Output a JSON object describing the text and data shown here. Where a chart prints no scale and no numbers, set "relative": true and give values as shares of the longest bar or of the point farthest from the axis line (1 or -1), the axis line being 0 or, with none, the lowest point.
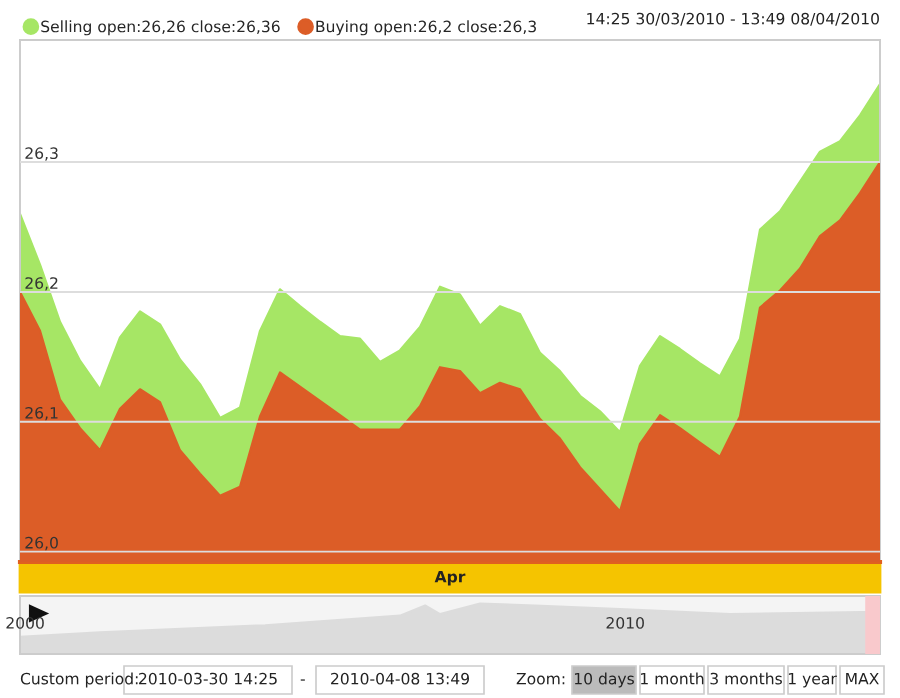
{
  "chart_data": [
    {
      "type": "area",
      "subtitle": "14:25 30/03/2010 - 13:49 08/04/2010",
      "legend": "top left",
      "grid": "y",
      "categories": [
        null,
        null,
        null,
        null,
        null,
        null,
        null,
        null,
        null,
        null,
        null,
        null,
        null,
        null,
        null,
        null,
        null,
        null,
        null,
        null,
        null,
        null,
        null,
        null,
        null,
        null,
        null,
        null,
        null,
        null,
        null,
        null,
        null,
        null,
        null,
        null,
        null,
        null,
        null,
        null,
        null,
        null,
        null,
        null
      ],
      "ylim": [
        25.992,
        26.394
      ],
      "yticks": [
        {
          "value": 26.0,
          "label": "26,0"
        },
        {
          "value": 26.1,
          "label": "26,1"
        },
        {
          "value": 26.2,
          "label": "26,2"
        },
        {
          "value": 26.3,
          "label": "26,3"
        }
      ],
      "annotations": [
        "Apr"
      ],
      "series": [
        {
          "name": "Selling open:26,26 close:26,36",
          "color": "#a6e665",
          "values": [
            26.26,
            26.221,
            26.177,
            26.147,
            26.125,
            26.165,
            26.185,
            26.175,
            26.148,
            26.129,
            26.103,
            26.111,
            26.17,
            26.202,
            26.189,
            26.177,
            26.166,
            26.164,
            26.146,
            26.155,
            26.173,
            26.204,
            26.198,
            26.174,
            26.189,
            26.183,
            26.153,
            26.139,
            26.12,
            26.108,
            26.092,
            26.143,
            26.166,
            26.156,
            26.145,
            26.135,
            26.164,
            26.248,
            26.262,
            26.285,
            26.308,
            26.316,
            26.336,
            26.36
          ]
        },
        {
          "name": "Buying open:26,2 close:26,3",
          "color": "#dc5d27",
          "values": [
            26.2,
            26.17,
            26.117,
            26.095,
            26.078,
            26.11,
            26.125,
            26.115,
            26.078,
            26.06,
            26.043,
            26.05,
            26.104,
            26.138,
            26.127,
            26.116,
            26.105,
            26.094,
            26.094,
            26.094,
            26.112,
            26.142,
            26.139,
            26.122,
            26.13,
            26.125,
            26.102,
            26.087,
            26.065,
            26.048,
            26.031,
            26.083,
            26.105,
            26.095,
            26.084,
            26.073,
            26.104,
            26.188,
            26.201,
            26.218,
            26.243,
            26.255,
            26.276,
            26.3
          ]
        }
      ]
    },
    {
      "type": "area",
      "relative": true,
      "xlim": [
        "1999-12",
        "2014-04"
      ],
      "xticks": [
        {
          "value": "2000",
          "label": "2000"
        },
        {
          "value": "2010",
          "label": "2010"
        }
      ],
      "bands": [
        {
          "axis": "x",
          "from": "2014-01",
          "to": "2014-04",
          "color": "#f9c9cc"
        }
      ],
      "series": [
        {
          "color": "#dcdcdc",
          "x": [
            "1999-12",
            "2001-04",
            "2004-01",
            "2006-04",
            "2006-09",
            "2006-12",
            "2007-08",
            "2008-07",
            "2009-12",
            "2011-10",
            "2013-12",
            "2014-04"
          ],
          "values": [
            0.34,
            0.43,
            0.57,
            0.76,
            0.96,
            0.79,
            1,
            0.96,
            0.89,
            0.79,
            0.83,
            0.83
          ]
        }
      ],
      "annotations": [
        "Custom period:",
        "2010-03-30 14:25",
        "-",
        "2010-04-08 13:49",
        "Zoom:",
        "10 days",
        "1 month",
        "3 months",
        "1 year",
        "MAX"
      ]
    }
  ]
}
